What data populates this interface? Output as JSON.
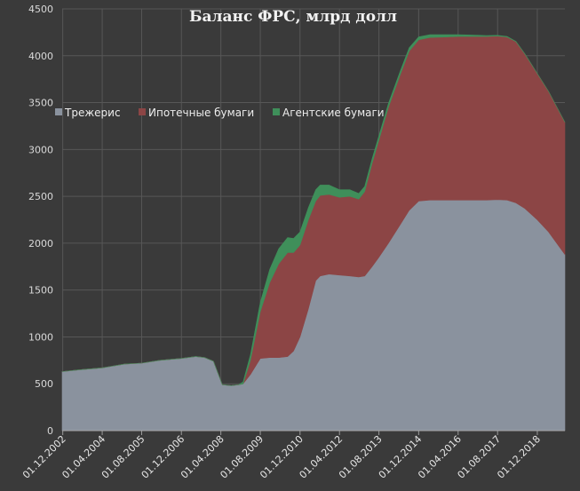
{
  "chart_data": {
    "type": "area",
    "stacked": true,
    "title": "Баланс ФРС, млрд долл",
    "xlabel": "",
    "ylabel": "",
    "ylim": [
      0,
      4500
    ],
    "yticks": [
      0,
      500,
      1000,
      1500,
      2000,
      2500,
      3000,
      3500,
      4000,
      4500
    ],
    "xlim": [
      2002.9,
      2019.85
    ],
    "xticks": [
      {
        "label": "01.12.2002",
        "value": 2002.92
      },
      {
        "label": "01.04.2004",
        "value": 2004.25
      },
      {
        "label": "01.08.2005",
        "value": 2005.58
      },
      {
        "label": "01.12.2006",
        "value": 2006.92
      },
      {
        "label": "01.04.2008",
        "value": 2008.25
      },
      {
        "label": "01.08.2009",
        "value": 2009.58
      },
      {
        "label": "01.12.2010",
        "value": 2010.92
      },
      {
        "label": "01.04.2012",
        "value": 2012.25
      },
      {
        "label": "01.08.2013",
        "value": 2013.58
      },
      {
        "label": "01.12.2014",
        "value": 2014.92
      },
      {
        "label": "01.04.2016",
        "value": 2016.25
      },
      {
        "label": "01.08.2017",
        "value": 2017.58
      },
      {
        "label": "01.12.2018",
        "value": 2018.92
      }
    ],
    "grid": true,
    "legend_position": "upper-left",
    "x": [
      2002.9,
      2003.5,
      2004.25,
      2005.0,
      2005.58,
      2006.2,
      2006.92,
      2007.4,
      2007.7,
      2008.0,
      2008.3,
      2008.6,
      2008.85,
      2009.0,
      2009.25,
      2009.58,
      2009.9,
      2010.2,
      2010.5,
      2010.7,
      2010.92,
      2011.2,
      2011.45,
      2011.6,
      2011.9,
      2012.25,
      2012.6,
      2012.9,
      2013.1,
      2013.35,
      2013.58,
      2013.9,
      2014.3,
      2014.6,
      2014.92,
      2015.3,
      2015.8,
      2016.25,
      2016.8,
      2017.2,
      2017.58,
      2017.9,
      2018.2,
      2018.5,
      2018.92,
      2019.3,
      2019.85
    ],
    "series": [
      {
        "name": "Трежерис",
        "color": "#8a929e",
        "values": [
          630,
          650,
          670,
          710,
          720,
          750,
          770,
          790,
          780,
          740,
          490,
          480,
          490,
          500,
          600,
          770,
          780,
          780,
          790,
          850,
          1000,
          1300,
          1600,
          1650,
          1670,
          1660,
          1650,
          1640,
          1650,
          1750,
          1850,
          2000,
          2200,
          2350,
          2450,
          2460,
          2460,
          2460,
          2460,
          2460,
          2465,
          2460,
          2430,
          2370,
          2250,
          2120,
          1880
        ]
      },
      {
        "name": "Ипотечные бумаги",
        "color": "#8c4545",
        "values": [
          0,
          0,
          0,
          0,
          0,
          0,
          0,
          0,
          0,
          0,
          0,
          0,
          0,
          0,
          150,
          500,
          800,
          1000,
          1110,
          1050,
          980,
          950,
          850,
          860,
          850,
          830,
          850,
          830,
          900,
          1100,
          1250,
          1450,
          1600,
          1700,
          1720,
          1735,
          1740,
          1745,
          1745,
          1745,
          1745,
          1740,
          1720,
          1650,
          1560,
          1500,
          1410
        ]
      },
      {
        "name": "Агентские бумаги",
        "color": "#3f8f5a",
        "values": [
          0,
          0,
          0,
          0,
          0,
          0,
          0,
          0,
          0,
          0,
          0,
          0,
          0,
          20,
          60,
          100,
          140,
          160,
          160,
          150,
          140,
          130,
          120,
          110,
          100,
          80,
          70,
          60,
          55,
          50,
          45,
          40,
          38,
          35,
          32,
          30,
          25,
          20,
          15,
          10,
          8,
          5,
          3,
          2,
          0,
          0,
          0
        ]
      }
    ]
  }
}
